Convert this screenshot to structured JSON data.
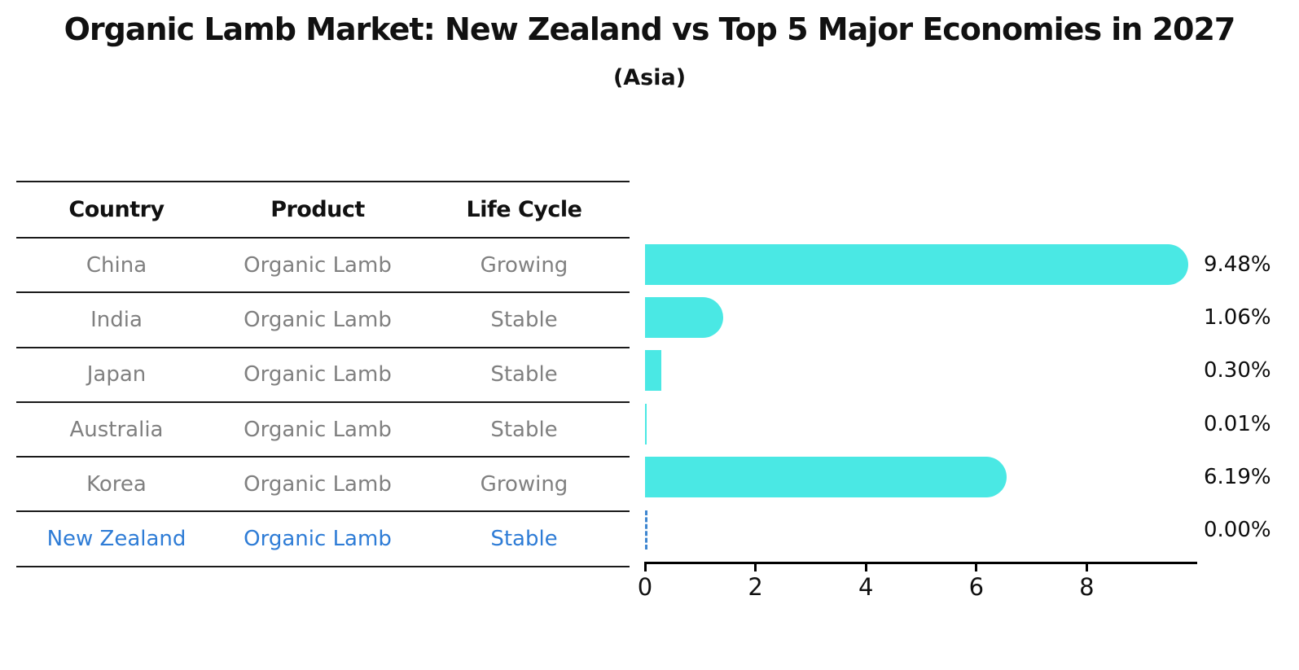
{
  "title": "Organic Lamb Market: New Zealand vs Top 5 Major Economies in 2027",
  "subtitle": "(Asia)",
  "colors": {
    "bar": "#4AE8E4",
    "highlight_text": "#2E7CD6",
    "zero_bar_dash": "#3E86D0",
    "row_text": "#808080",
    "header_text": "#111111"
  },
  "table": {
    "headers": [
      "Country",
      "Product",
      "Life Cycle"
    ]
  },
  "chart_data": {
    "type": "bar",
    "orientation": "horizontal",
    "title": "Organic Lamb Market: New Zealand vs Top 5 Major Economies in 2027",
    "subtitle": "(Asia)",
    "categories": [
      "China",
      "India",
      "Japan",
      "Australia",
      "Korea",
      "New Zealand"
    ],
    "values": [
      9.48,
      1.06,
      0.3,
      0.01,
      6.19,
      0.0
    ],
    "xlabel": "",
    "ylabel": "",
    "xlim": [
      0,
      10
    ],
    "xticks": [
      0,
      2,
      4,
      6,
      8
    ],
    "grid": false,
    "legend": false,
    "bar_style": "rounded-right-cap, zero value shown as blue dashed line",
    "rows": [
      {
        "country": "China",
        "product": "Organic Lamb",
        "life_cycle": "Growing",
        "value": 9.48,
        "label": "9.48%"
      },
      {
        "country": "India",
        "product": "Organic Lamb",
        "life_cycle": "Stable",
        "value": 1.06,
        "label": "1.06%"
      },
      {
        "country": "Japan",
        "product": "Organic Lamb",
        "life_cycle": "Stable",
        "value": 0.3,
        "label": "0.30%"
      },
      {
        "country": "Australia",
        "product": "Organic Lamb",
        "life_cycle": "Stable",
        "value": 0.01,
        "label": "0.01%"
      },
      {
        "country": "Korea",
        "product": "Organic Lamb",
        "life_cycle": "Growing",
        "value": 6.19,
        "label": "6.19%"
      },
      {
        "country": "New Zealand",
        "product": "Organic Lamb",
        "life_cycle": "Stable",
        "value": 0.0,
        "label": "0.00%"
      }
    ]
  }
}
